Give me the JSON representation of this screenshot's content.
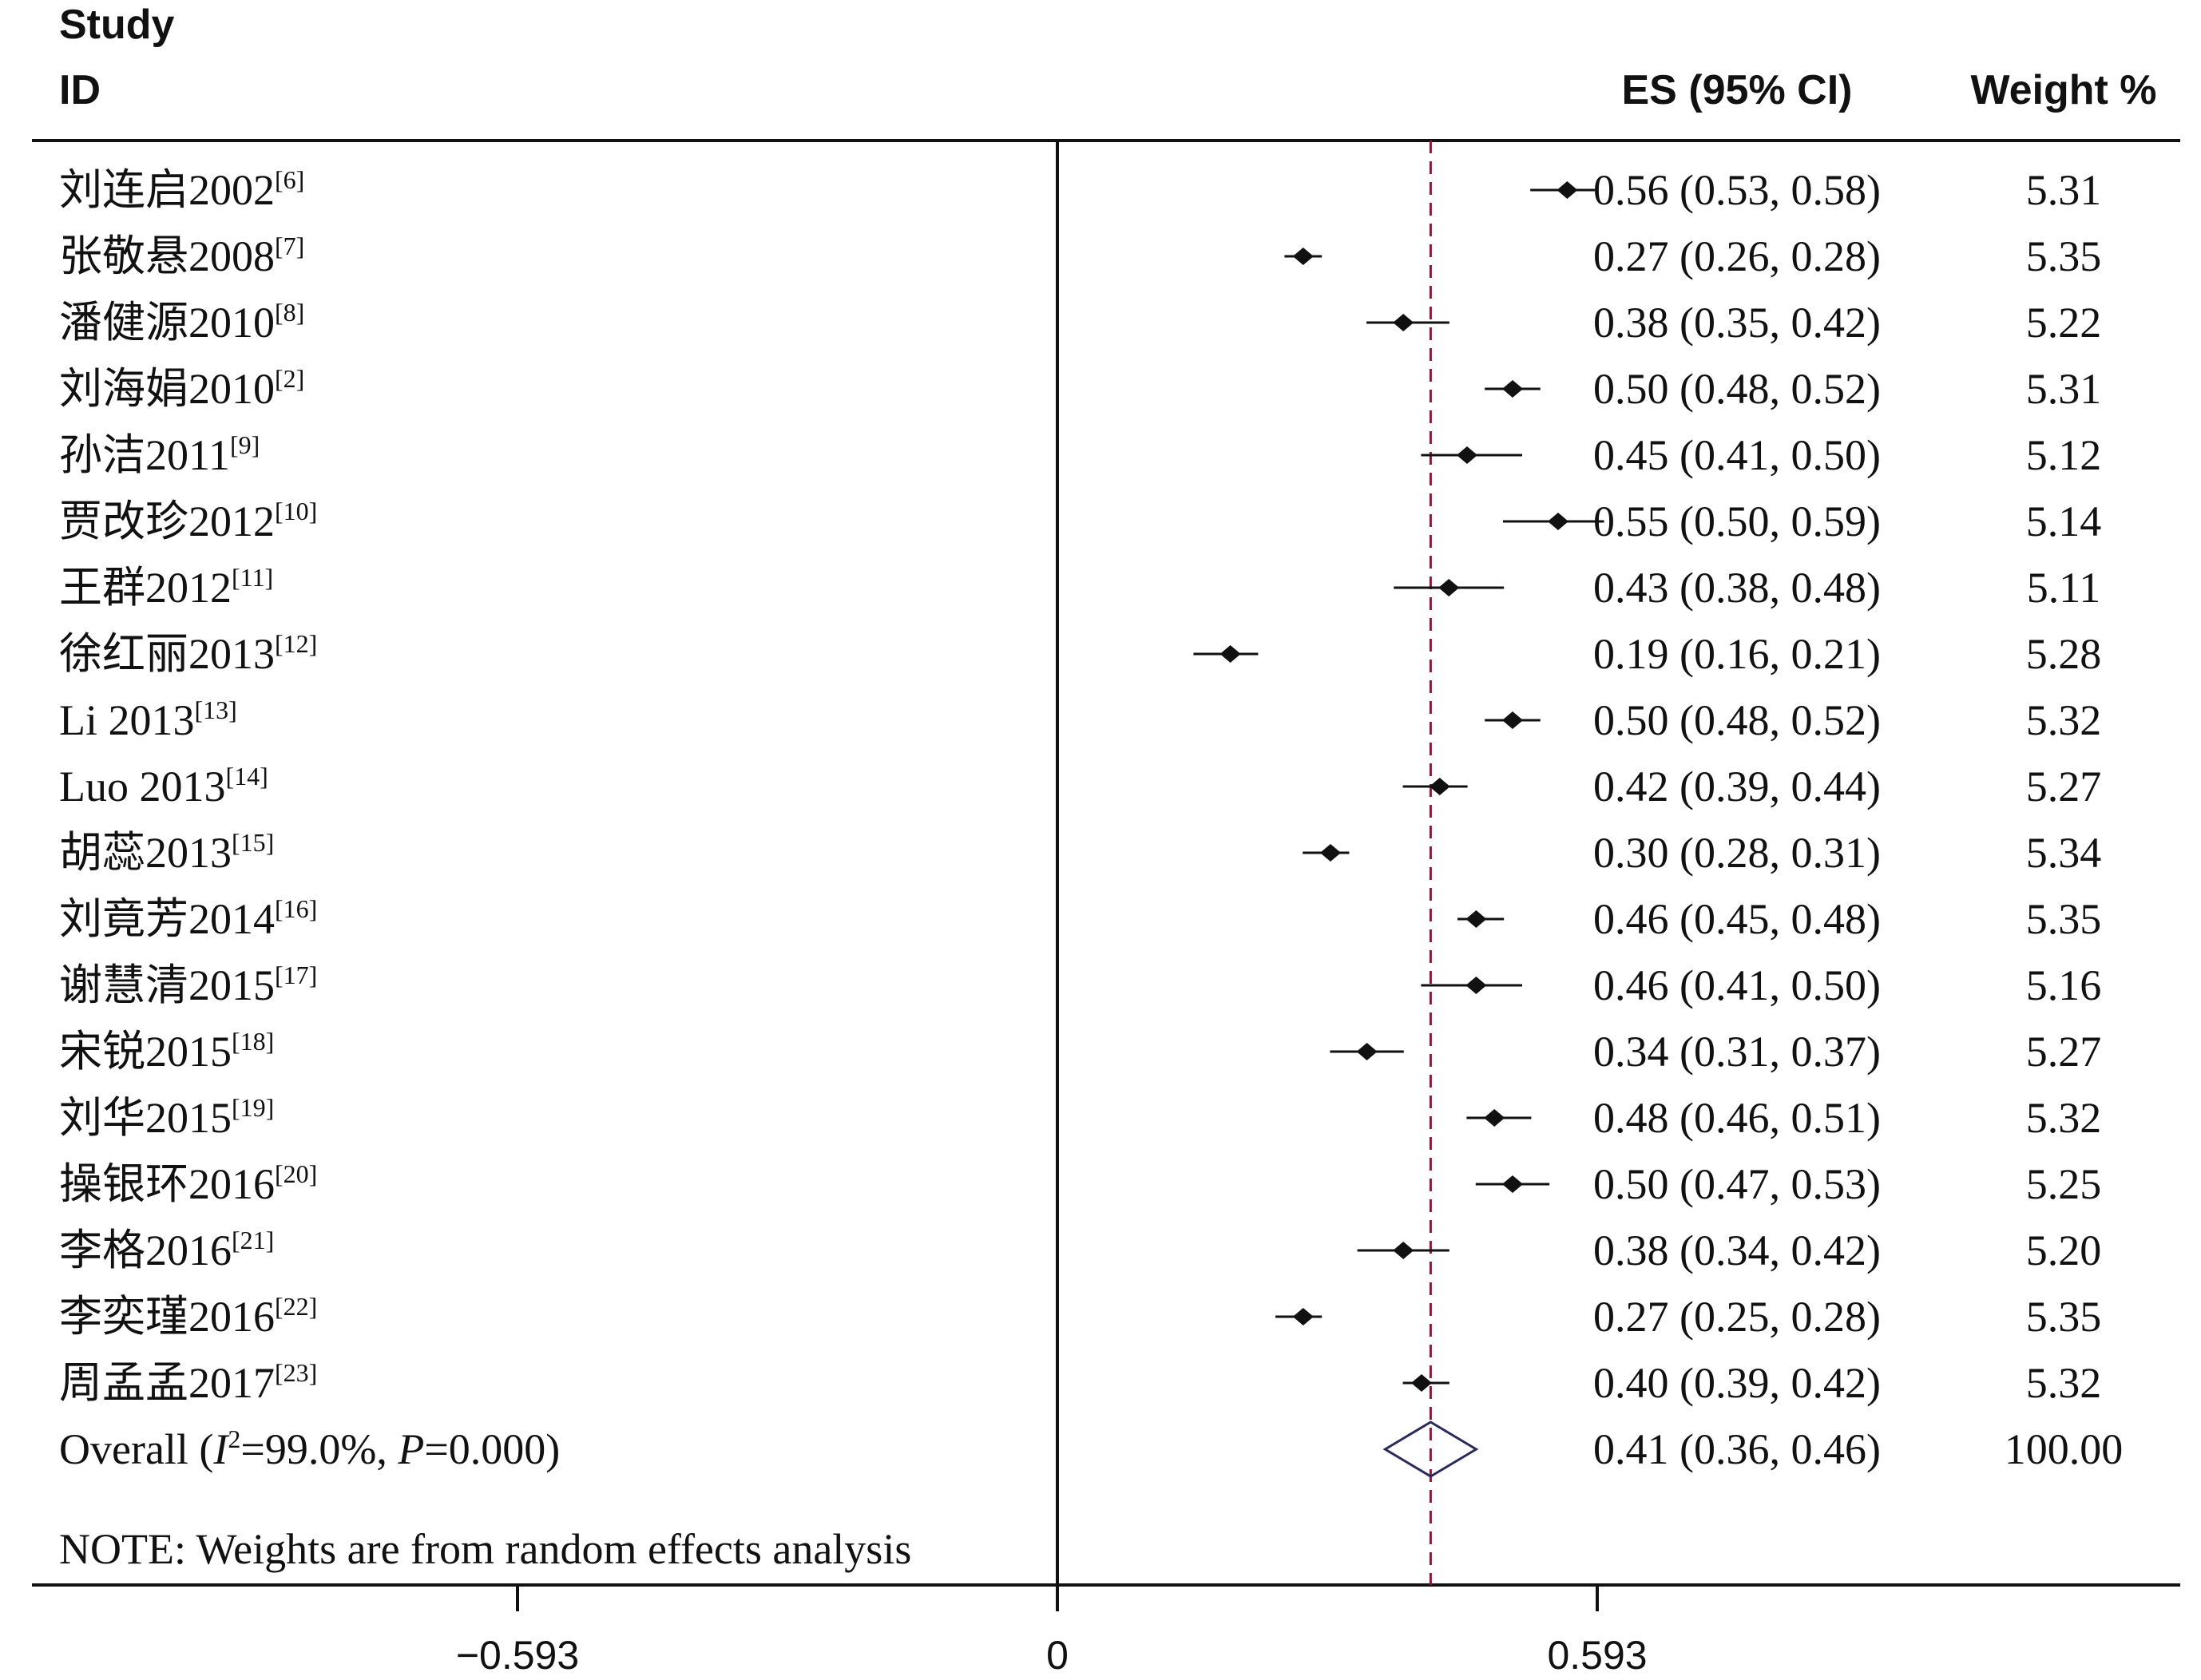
{
  "header": {
    "study": "Study",
    "id": "ID",
    "es_col": "ES (95% CI)",
    "weight_col": "Weight %"
  },
  "studies": [
    {
      "name": "刘连启2002",
      "ref": "[6]",
      "es": 0.56,
      "lo": 0.53,
      "hi": 0.58,
      "es_text": "0.56 (0.53, 0.58)",
      "weight": "5.31"
    },
    {
      "name": "张敬悬2008",
      "ref": "[7]",
      "es": 0.27,
      "lo": 0.26,
      "hi": 0.28,
      "es_text": "0.27 (0.26, 0.28)",
      "weight": "5.35"
    },
    {
      "name": "潘健源2010",
      "ref": "[8]",
      "es": 0.38,
      "lo": 0.35,
      "hi": 0.42,
      "es_text": "0.38 (0.35, 0.42)",
      "weight": "5.22"
    },
    {
      "name": "刘海娟2010",
      "ref": "[2]",
      "es": 0.5,
      "lo": 0.48,
      "hi": 0.52,
      "es_text": "0.50 (0.48, 0.52)",
      "weight": "5.31"
    },
    {
      "name": "孙洁2011",
      "ref": "[9]",
      "es": 0.45,
      "lo": 0.41,
      "hi": 0.5,
      "es_text": "0.45 (0.41, 0.50)",
      "weight": "5.12"
    },
    {
      "name": "贾改珍2012",
      "ref": "[10]",
      "es": 0.55,
      "lo": 0.5,
      "hi": 0.59,
      "es_text": "0.55 (0.50, 0.59)",
      "weight": "5.14"
    },
    {
      "name": "王群2012",
      "ref": "[11]",
      "es": 0.43,
      "lo": 0.38,
      "hi": 0.48,
      "es_text": "0.43 (0.38, 0.48)",
      "weight": "5.11"
    },
    {
      "name": "徐红丽2013",
      "ref": "[12]",
      "es": 0.19,
      "lo": 0.16,
      "hi": 0.21,
      "es_text": "0.19 (0.16, 0.21)",
      "weight": "5.28"
    },
    {
      "name": "Li 2013",
      "ref": "[13]",
      "es": 0.5,
      "lo": 0.48,
      "hi": 0.52,
      "es_text": "0.50 (0.48, 0.52)",
      "weight": "5.32"
    },
    {
      "name": "Luo 2013",
      "ref": "[14]",
      "es": 0.42,
      "lo": 0.39,
      "hi": 0.44,
      "es_text": "0.42 (0.39, 0.44)",
      "weight": "5.27"
    },
    {
      "name": "胡蕊2013",
      "ref": "[15]",
      "es": 0.3,
      "lo": 0.28,
      "hi": 0.31,
      "es_text": "0.30 (0.28, 0.31)",
      "weight": "5.34"
    },
    {
      "name": "刘竟芳2014",
      "ref": "[16]",
      "es": 0.46,
      "lo": 0.45,
      "hi": 0.48,
      "es_text": "0.46 (0.45, 0.48)",
      "weight": "5.35"
    },
    {
      "name": "谢慧清2015",
      "ref": "[17]",
      "es": 0.46,
      "lo": 0.41,
      "hi": 0.5,
      "es_text": "0.46 (0.41, 0.50)",
      "weight": "5.16"
    },
    {
      "name": "宋锐2015",
      "ref": "[18]",
      "es": 0.34,
      "lo": 0.31,
      "hi": 0.37,
      "es_text": "0.34 (0.31, 0.37)",
      "weight": "5.27"
    },
    {
      "name": "刘华2015",
      "ref": "[19]",
      "es": 0.48,
      "lo": 0.46,
      "hi": 0.51,
      "es_text": "0.48 (0.46, 0.51)",
      "weight": "5.32"
    },
    {
      "name": "操银环2016",
      "ref": "[20]",
      "es": 0.5,
      "lo": 0.47,
      "hi": 0.53,
      "es_text": "0.50 (0.47, 0.53)",
      "weight": "5.25"
    },
    {
      "name": "李格2016",
      "ref": "[21]",
      "es": 0.38,
      "lo": 0.34,
      "hi": 0.42,
      "es_text": "0.38 (0.34, 0.42)",
      "weight": "5.20"
    },
    {
      "name": "李奕瑾2016",
      "ref": "[22]",
      "es": 0.27,
      "lo": 0.25,
      "hi": 0.28,
      "es_text": "0.27 (0.25, 0.28)",
      "weight": "5.35"
    },
    {
      "name": "周孟孟2017",
      "ref": "[23]",
      "es": 0.4,
      "lo": 0.39,
      "hi": 0.42,
      "es_text": "0.40 (0.39, 0.42)",
      "weight": "5.32"
    }
  ],
  "overall": {
    "prefix": "Overall (",
    "i2_symbol": "I",
    "i2_sup": "2",
    "i2_value": "=99.0%, ",
    "p_symbol": "P",
    "p_value": "=0.000)",
    "es": 0.41,
    "lo": 0.36,
    "hi": 0.46,
    "es_text": "0.41 (0.36, 0.46)",
    "weight": "100.00"
  },
  "note": "NOTE: Weights are from random effects analysis",
  "colors": {
    "ink": "#111111",
    "overall_line": "#7a1f3d",
    "diamond": "#2a2a5a"
  },
  "chart_data": {
    "type": "forest",
    "x_ticks": [
      -0.593,
      0,
      0.593
    ],
    "x_tick_labels": [
      "−0.593",
      "0",
      "0.593"
    ],
    "xlim": [
      -1.163,
      1.238
    ],
    "null_line": 0,
    "overall_line": 0.41
  }
}
